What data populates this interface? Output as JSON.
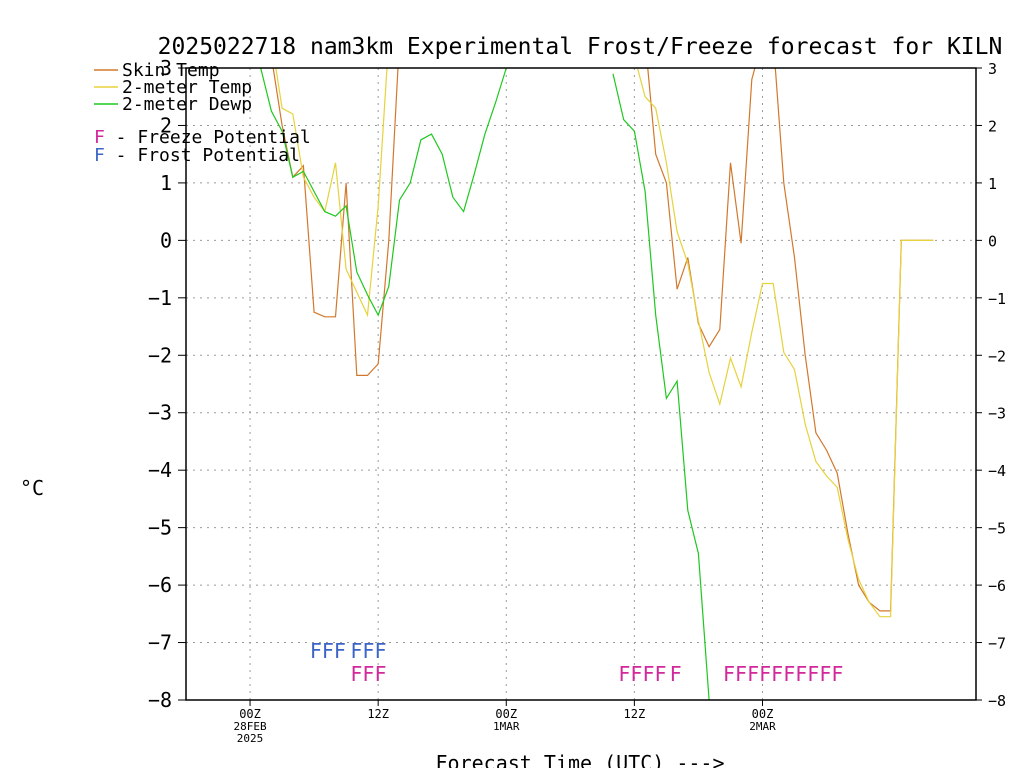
{
  "chart_data": {
    "type": "line",
    "title": "2025022718 nam3km Experimental Frost/Freeze forecast for KILN",
    "xlabel": "Forecast Time (UTC) --->",
    "ylabel": "°C",
    "ylim": [
      -8,
      3
    ],
    "xlim": [
      -6,
      68
    ],
    "yticks": [
      3,
      2,
      1,
      0,
      -1,
      -2,
      -3,
      -4,
      -5,
      -6,
      -7,
      -8
    ],
    "x_unit": "hours after 2025-02-28 00Z",
    "x_ticks": [
      {
        "x": 0,
        "label": "00Z",
        "sublabel": "28FEB",
        "sublabel2": "2025"
      },
      {
        "x": 12,
        "label": "12Z",
        "sublabel": "",
        "sublabel2": ""
      },
      {
        "x": 24,
        "label": "00Z",
        "sublabel": "1MAR",
        "sublabel2": ""
      },
      {
        "x": 36,
        "label": "12Z",
        "sublabel": "",
        "sublabel2": ""
      },
      {
        "x": 48,
        "label": "00Z",
        "sublabel": "2MAR",
        "sublabel2": ""
      }
    ],
    "grid": true,
    "legend": [
      {
        "name": "Skin Temp",
        "color": "#d2782d"
      },
      {
        "name": "2-meter Temp",
        "color": "#e6d23c"
      },
      {
        "name": "2-meter Dewp",
        "color": "#1ec81e"
      }
    ],
    "legend_symbols": [
      {
        "letter": "F",
        "text": " - Freeze Potential",
        "color": "#d2289b"
      },
      {
        "letter": "F",
        "text": " - Frost Potential",
        "color": "#3c64c8"
      }
    ],
    "series": [
      {
        "name": "Skin Temp",
        "color": "#d2782d",
        "x": [
          1,
          2,
          3,
          4,
          5,
          6,
          7,
          8,
          9,
          10,
          11,
          12,
          13,
          14,
          37,
          38,
          39,
          40,
          41,
          42,
          43,
          44,
          45,
          46,
          47,
          48,
          49,
          50,
          51,
          52,
          53,
          54,
          55,
          56,
          57,
          58,
          59,
          60,
          61,
          62,
          63,
          64
        ],
        "y": [
          3.5,
          3.2,
          2.0,
          1.1,
          1.3,
          -1.25,
          -1.33,
          -1.33,
          1.0,
          -2.35,
          -2.35,
          -2.15,
          0.0,
          3.5,
          3.5,
          1.5,
          1.0,
          -0.85,
          -0.3,
          -1.45,
          -1.85,
          -1.55,
          1.35,
          -0.05,
          2.8,
          3.5,
          3.5,
          1.0,
          -0.3,
          -2.0,
          -3.35,
          -3.65,
          -4.05,
          -5.1,
          -6.0,
          -6.3,
          -6.45,
          -6.45,
          0,
          0,
          0,
          0
        ]
      },
      {
        "name": "2-meter Temp",
        "color": "#e6d23c",
        "x": [
          2,
          3,
          4,
          5,
          6,
          7,
          8,
          9,
          10,
          11,
          12,
          13,
          14,
          35,
          36,
          37,
          38,
          39,
          40,
          41,
          42,
          43,
          44,
          45,
          46,
          47,
          48,
          49,
          50,
          51,
          52,
          53,
          54,
          55,
          56,
          57,
          58,
          59,
          60,
          61,
          62,
          63,
          64
        ],
        "y": [
          3.5,
          2.3,
          2.2,
          1.1,
          0.75,
          0.5,
          1.35,
          -0.5,
          -0.9,
          -1.3,
          0.6,
          3.5,
          3.5,
          3.5,
          3.2,
          2.5,
          2.3,
          1.35,
          0.15,
          -0.4,
          -1.4,
          -2.3,
          -2.85,
          -2.05,
          -2.55,
          -1.6,
          -0.75,
          -0.75,
          -1.95,
          -2.25,
          -3.2,
          -3.85,
          -4.1,
          -4.3,
          -5.2,
          -5.9,
          -6.3,
          -6.55,
          -6.55,
          0,
          0,
          0,
          0
        ]
      },
      {
        "name": "2-meter Dewp",
        "color": "#1ec81e",
        "x": [
          1,
          2,
          3,
          4,
          5,
          6,
          7,
          8,
          9,
          10,
          11,
          12,
          13,
          14,
          15,
          16,
          17,
          18,
          19,
          20,
          21,
          22,
          23,
          24,
          34,
          35,
          36,
          37,
          38,
          39,
          40,
          41,
          42,
          43,
          44,
          45,
          46,
          47,
          48,
          49,
          50,
          51,
          52,
          53,
          54,
          55,
          56,
          57,
          58,
          59,
          60,
          61,
          62,
          63,
          64
        ],
        "y": [
          3.0,
          2.25,
          1.9,
          1.1,
          1.2,
          0.85,
          0.5,
          0.42,
          0.6,
          -0.55,
          -0.95,
          -1.3,
          -0.8,
          0.7,
          1.0,
          1.75,
          1.85,
          1.5,
          0.75,
          0.5,
          1.15,
          1.85,
          2.4,
          3.0,
          2.9,
          2.1,
          1.9,
          0.85,
          -1.3,
          -2.75,
          -2.45,
          -4.7,
          -5.45,
          -8.0,
          -8.2,
          -8.3,
          -8.3,
          -8.3,
          -8.3,
          -8.3,
          -8.3,
          -8.3,
          -8.3,
          -8.3,
          -8.3,
          -8.3,
          -8.3,
          -8.3,
          -8.3,
          -8.3,
          -8.3,
          -8.3,
          -8.3,
          -8.3,
          -8.3
        ]
      }
    ],
    "markers": [
      {
        "type": "Frost",
        "color": "#3c64c8",
        "row": 1,
        "text": "FFF",
        "x_start": 5.6
      },
      {
        "type": "Frost",
        "color": "#3c64c8",
        "row": 1,
        "text": "FFF",
        "x_start": 9.4
      },
      {
        "type": "Freeze",
        "color": "#d2289b",
        "row": 2,
        "text": "FFF",
        "x_start": 9.4
      },
      {
        "type": "Freeze",
        "color": "#d2289b",
        "row": 2,
        "text": "FFFF",
        "x_start": 34.5
      },
      {
        "type": "Freeze",
        "color": "#d2289b",
        "row": 2,
        "text": "F",
        "x_start": 39.3
      },
      {
        "type": "Freeze",
        "color": "#d2289b",
        "row": 2,
        "text": "FFFFFFFFFF",
        "x_start": 44.3
      }
    ]
  }
}
